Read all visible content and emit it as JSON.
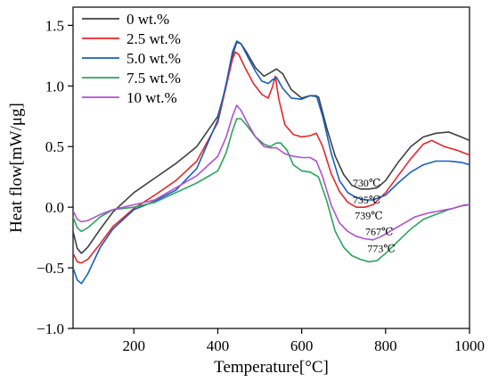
{
  "chart_data": {
    "type": "line",
    "xlabel": "Temperature[°C]",
    "ylabel": "Heat flow[mW/μg]",
    "xlim": [
      55,
      1000
    ],
    "ylim": [
      -1.0,
      1.65
    ],
    "xticks": [
      200,
      400,
      600,
      800,
      1000
    ],
    "yticks": [
      -1.0,
      -0.5,
      0.0,
      0.5,
      1.0,
      1.5
    ],
    "xtick_labels": [
      "200",
      "400",
      "600",
      "800",
      "1000"
    ],
    "ytick_labels": [
      "−1.0",
      "−0.5",
      "0.0",
      "0.5",
      "1.0",
      "1.5"
    ],
    "legend_position": "top-left",
    "grid": false,
    "series": [
      {
        "name": "0 wt.%",
        "color": "#404040",
        "points": [
          [
            55,
            -0.2
          ],
          [
            65,
            -0.34
          ],
          [
            75,
            -0.38
          ],
          [
            90,
            -0.33
          ],
          [
            120,
            -0.18
          ],
          [
            150,
            -0.04
          ],
          [
            200,
            0.12
          ],
          [
            250,
            0.24
          ],
          [
            300,
            0.36
          ],
          [
            350,
            0.5
          ],
          [
            400,
            0.75
          ],
          [
            420,
            1.0
          ],
          [
            435,
            1.25
          ],
          [
            445,
            1.36
          ],
          [
            455,
            1.35
          ],
          [
            470,
            1.27
          ],
          [
            490,
            1.15
          ],
          [
            510,
            1.08
          ],
          [
            525,
            1.11
          ],
          [
            540,
            1.14
          ],
          [
            555,
            1.1
          ],
          [
            575,
            0.97
          ],
          [
            600,
            0.9
          ],
          [
            620,
            0.92
          ],
          [
            640,
            0.91
          ],
          [
            660,
            0.65
          ],
          [
            680,
            0.42
          ],
          [
            700,
            0.27
          ],
          [
            720,
            0.18
          ],
          [
            740,
            0.15
          ],
          [
            760,
            0.15
          ],
          [
            780,
            0.16
          ],
          [
            800,
            0.22
          ],
          [
            830,
            0.37
          ],
          [
            860,
            0.5
          ],
          [
            890,
            0.58
          ],
          [
            920,
            0.61
          ],
          [
            950,
            0.62
          ],
          [
            980,
            0.58
          ],
          [
            1000,
            0.55
          ]
        ]
      },
      {
        "name": "2.5 wt.%",
        "color": "#e8262a",
        "points": [
          [
            55,
            -0.38
          ],
          [
            65,
            -0.45
          ],
          [
            75,
            -0.46
          ],
          [
            90,
            -0.43
          ],
          [
            120,
            -0.3
          ],
          [
            150,
            -0.16
          ],
          [
            200,
            -0.01
          ],
          [
            250,
            0.1
          ],
          [
            300,
            0.22
          ],
          [
            350,
            0.38
          ],
          [
            400,
            0.7
          ],
          [
            420,
            1.0
          ],
          [
            435,
            1.22
          ],
          [
            442,
            1.28
          ],
          [
            450,
            1.26
          ],
          [
            465,
            1.15
          ],
          [
            485,
            1.02
          ],
          [
            505,
            0.93
          ],
          [
            520,
            0.9
          ],
          [
            530,
            0.99
          ],
          [
            537,
            1.08
          ],
          [
            545,
            0.9
          ],
          [
            560,
            0.68
          ],
          [
            580,
            0.6
          ],
          [
            600,
            0.58
          ],
          [
            620,
            0.59
          ],
          [
            635,
            0.61
          ],
          [
            650,
            0.5
          ],
          [
            670,
            0.28
          ],
          [
            690,
            0.13
          ],
          [
            710,
            0.04
          ],
          [
            730,
            0.0
          ],
          [
            750,
            0.0
          ],
          [
            770,
            0.02
          ],
          [
            800,
            0.12
          ],
          [
            830,
            0.26
          ],
          [
            860,
            0.4
          ],
          [
            890,
            0.52
          ],
          [
            910,
            0.55
          ],
          [
            940,
            0.5
          ],
          [
            970,
            0.47
          ],
          [
            1000,
            0.43
          ]
        ]
      },
      {
        "name": "5.0 wt.%",
        "color": "#1560c0",
        "points": [
          [
            55,
            -0.5
          ],
          [
            65,
            -0.6
          ],
          [
            75,
            -0.63
          ],
          [
            90,
            -0.55
          ],
          [
            120,
            -0.33
          ],
          [
            150,
            -0.18
          ],
          [
            200,
            -0.02
          ],
          [
            250,
            0.05
          ],
          [
            300,
            0.14
          ],
          [
            350,
            0.32
          ],
          [
            400,
            0.72
          ],
          [
            420,
            1.02
          ],
          [
            435,
            1.28
          ],
          [
            445,
            1.37
          ],
          [
            455,
            1.35
          ],
          [
            470,
            1.25
          ],
          [
            490,
            1.12
          ],
          [
            505,
            1.04
          ],
          [
            520,
            1.02
          ],
          [
            530,
            1.05
          ],
          [
            540,
            1.07
          ],
          [
            555,
            0.98
          ],
          [
            575,
            0.9
          ],
          [
            600,
            0.89
          ],
          [
            620,
            0.92
          ],
          [
            635,
            0.92
          ],
          [
            650,
            0.75
          ],
          [
            670,
            0.45
          ],
          [
            690,
            0.22
          ],
          [
            710,
            0.12
          ],
          [
            730,
            0.08
          ],
          [
            750,
            0.06
          ],
          [
            770,
            0.06
          ],
          [
            800,
            0.1
          ],
          [
            830,
            0.2
          ],
          [
            860,
            0.29
          ],
          [
            890,
            0.35
          ],
          [
            920,
            0.38
          ],
          [
            950,
            0.38
          ],
          [
            980,
            0.37
          ],
          [
            1000,
            0.35
          ]
        ]
      },
      {
        "name": "7.5 wt.%",
        "color": "#2aa55a",
        "points": [
          [
            55,
            -0.08
          ],
          [
            65,
            -0.17
          ],
          [
            75,
            -0.2
          ],
          [
            90,
            -0.17
          ],
          [
            120,
            -0.08
          ],
          [
            150,
            -0.02
          ],
          [
            200,
            0.0
          ],
          [
            250,
            0.04
          ],
          [
            300,
            0.12
          ],
          [
            350,
            0.2
          ],
          [
            400,
            0.3
          ],
          [
            420,
            0.45
          ],
          [
            435,
            0.63
          ],
          [
            445,
            0.73
          ],
          [
            455,
            0.73
          ],
          [
            470,
            0.67
          ],
          [
            490,
            0.58
          ],
          [
            510,
            0.52
          ],
          [
            525,
            0.5
          ],
          [
            540,
            0.53
          ],
          [
            550,
            0.53
          ],
          [
            565,
            0.47
          ],
          [
            580,
            0.35
          ],
          [
            600,
            0.3
          ],
          [
            620,
            0.29
          ],
          [
            640,
            0.25
          ],
          [
            660,
            0.05
          ],
          [
            680,
            -0.2
          ],
          [
            700,
            -0.33
          ],
          [
            720,
            -0.4
          ],
          [
            740,
            -0.43
          ],
          [
            760,
            -0.45
          ],
          [
            780,
            -0.44
          ],
          [
            800,
            -0.38
          ],
          [
            830,
            -0.28
          ],
          [
            860,
            -0.18
          ],
          [
            890,
            -0.1
          ],
          [
            920,
            -0.06
          ],
          [
            950,
            -0.02
          ],
          [
            980,
            0.01
          ],
          [
            1000,
            0.02
          ]
        ]
      },
      {
        "name": "10 wt.%",
        "color": "#b050d0",
        "points": [
          [
            55,
            -0.03
          ],
          [
            65,
            -0.1
          ],
          [
            75,
            -0.12
          ],
          [
            90,
            -0.11
          ],
          [
            120,
            -0.06
          ],
          [
            150,
            -0.02
          ],
          [
            200,
            0.02
          ],
          [
            250,
            0.06
          ],
          [
            300,
            0.16
          ],
          [
            350,
            0.26
          ],
          [
            400,
            0.42
          ],
          [
            420,
            0.58
          ],
          [
            435,
            0.75
          ],
          [
            445,
            0.84
          ],
          [
            455,
            0.8
          ],
          [
            470,
            0.7
          ],
          [
            490,
            0.58
          ],
          [
            510,
            0.5
          ],
          [
            525,
            0.49
          ],
          [
            540,
            0.49
          ],
          [
            560,
            0.44
          ],
          [
            580,
            0.42
          ],
          [
            600,
            0.41
          ],
          [
            620,
            0.41
          ],
          [
            635,
            0.38
          ],
          [
            650,
            0.25
          ],
          [
            670,
            0.02
          ],
          [
            690,
            -0.13
          ],
          [
            710,
            -0.2
          ],
          [
            730,
            -0.24
          ],
          [
            750,
            -0.26
          ],
          [
            770,
            -0.27
          ],
          [
            790,
            -0.24
          ],
          [
            810,
            -0.2
          ],
          [
            840,
            -0.14
          ],
          [
            870,
            -0.08
          ],
          [
            900,
            -0.05
          ],
          [
            930,
            -0.03
          ],
          [
            960,
            -0.01
          ],
          [
            990,
            0.02
          ],
          [
            1000,
            0.02
          ]
        ]
      }
    ],
    "annotations": [
      {
        "text": "730℃",
        "x": 755,
        "y": 0.2,
        "color": "#404040"
      },
      {
        "text": "735℃",
        "x": 755,
        "y": 0.06,
        "color": "#1560c0"
      },
      {
        "text": "739℃",
        "x": 760,
        "y": -0.07,
        "color": "#e8262a"
      },
      {
        "text": "767℃",
        "x": 785,
        "y": -0.2,
        "color": "#b050d0"
      },
      {
        "text": "773℃",
        "x": 790,
        "y": -0.34,
        "color": "#2aa55a"
      }
    ]
  }
}
